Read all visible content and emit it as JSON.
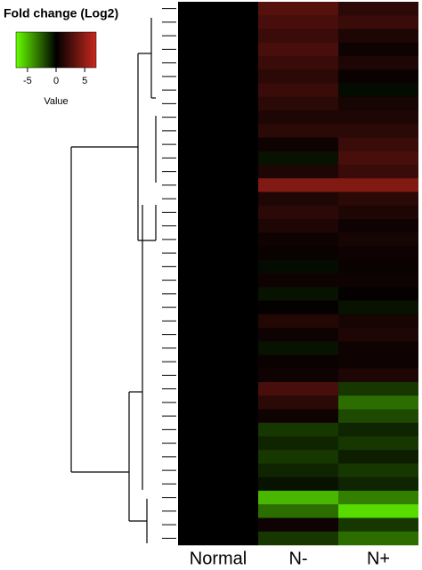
{
  "chart_data": {
    "type": "heatmap",
    "title": "Fold change (Log2)",
    "colorbar_label": "Value",
    "categories": [
      "Normal",
      "N-",
      "N+"
    ],
    "values": [
      [
        0,
        3,
        1.5
      ],
      [
        0,
        2.5,
        2
      ],
      [
        0,
        2,
        1
      ],
      [
        0,
        2.5,
        0.5
      ],
      [
        0,
        2,
        1
      ],
      [
        0,
        1.5,
        0.3
      ],
      [
        0,
        2,
        -0.3
      ],
      [
        0,
        1.5,
        0.8
      ],
      [
        0,
        1,
        1
      ],
      [
        0,
        1.5,
        1.5
      ],
      [
        0,
        0.5,
        2
      ],
      [
        0,
        -0.5,
        2.5
      ],
      [
        0,
        1,
        2
      ],
      [
        0,
        4.5,
        4.5
      ],
      [
        0,
        1,
        1.5
      ],
      [
        0,
        1.5,
        1
      ],
      [
        0,
        1,
        0.5
      ],
      [
        0,
        0.5,
        0.8
      ],
      [
        0,
        0.3,
        0.5
      ],
      [
        0,
        -0.3,
        0.3
      ],
      [
        0,
        0.5,
        0.5
      ],
      [
        0,
        -0.5,
        0.2
      ],
      [
        0,
        0.2,
        -0.5
      ],
      [
        0,
        1.2,
        0.8
      ],
      [
        0,
        0.5,
        1
      ],
      [
        0,
        -0.5,
        0.5
      ],
      [
        0,
        0.3,
        0.5
      ],
      [
        0,
        0.5,
        1
      ],
      [
        0,
        2.5,
        -1.5
      ],
      [
        0,
        1.5,
        -3
      ],
      [
        0,
        0.5,
        -2
      ],
      [
        0,
        -1.5,
        -1
      ],
      [
        0,
        -1,
        -1.5
      ],
      [
        0,
        -1.5,
        -0.8
      ],
      [
        0,
        -1,
        -1.5
      ],
      [
        0,
        -0.5,
        -1
      ],
      [
        0,
        -5,
        -3.5
      ],
      [
        0,
        -3,
        -6
      ],
      [
        0,
        0.5,
        -1.5
      ],
      [
        0,
        -1.5,
        -3
      ]
    ],
    "colorscale": [
      "#66ff00",
      "#000000",
      "#c8281e"
    ],
    "zlim": [
      -7,
      7
    ],
    "zticks": [
      -5,
      0,
      5
    ]
  }
}
